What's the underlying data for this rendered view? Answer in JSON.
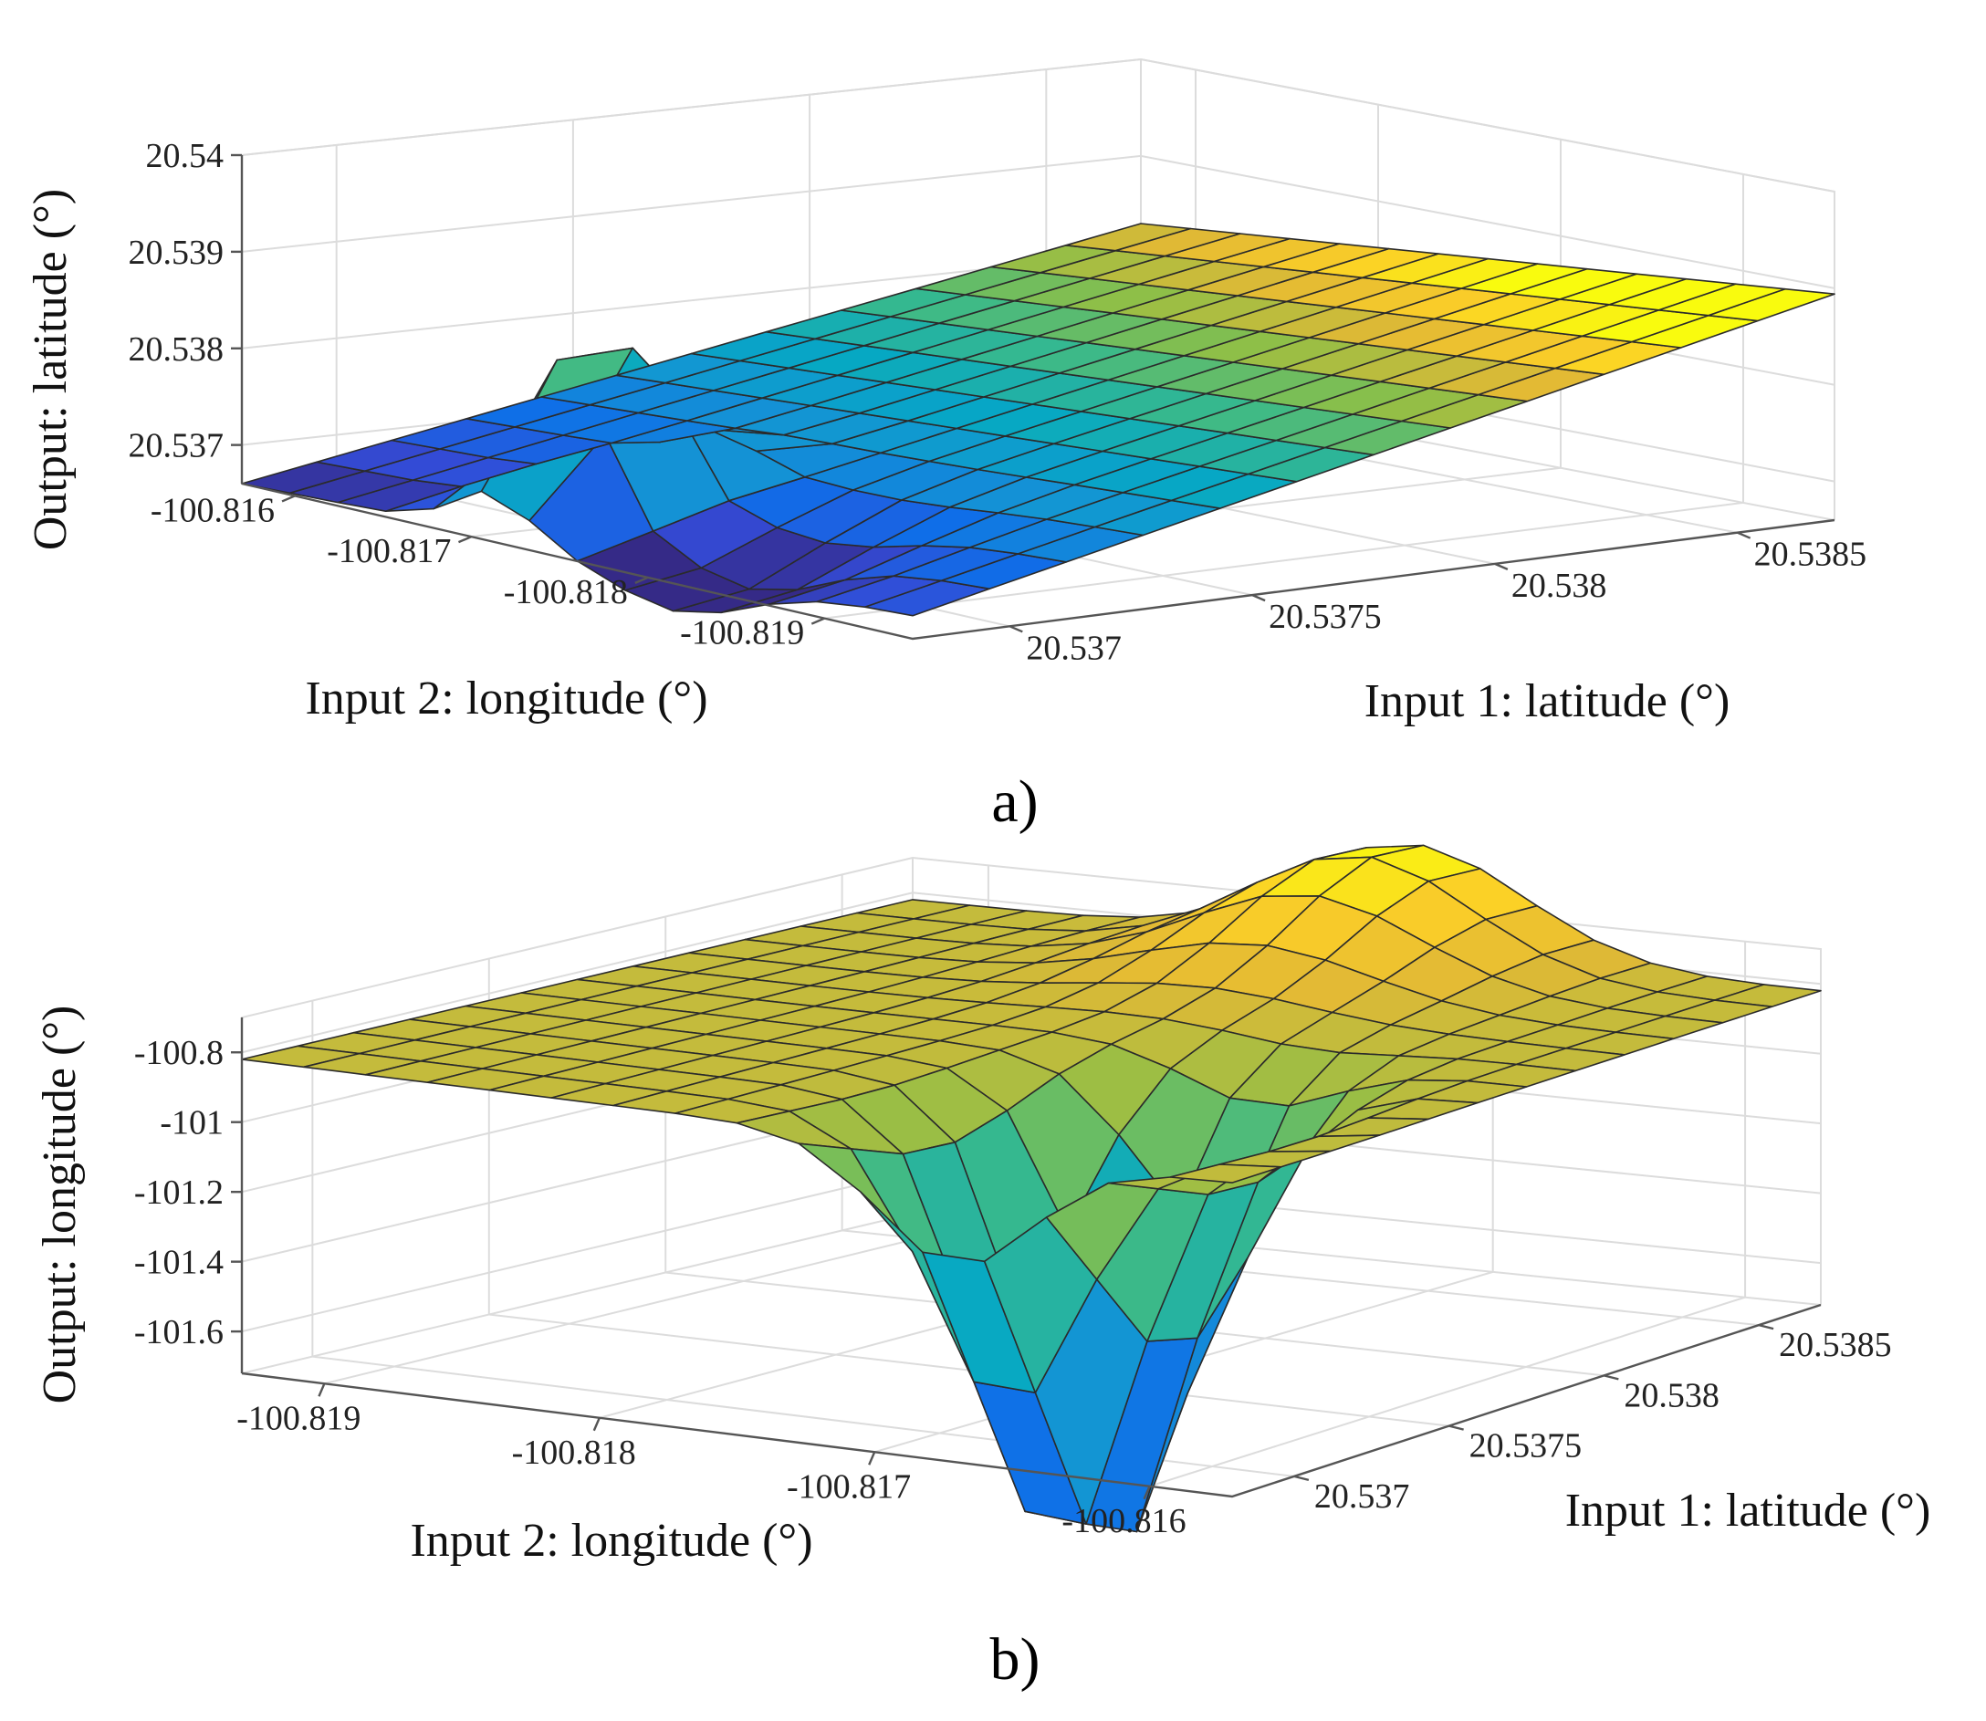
{
  "chart_data": [
    {
      "type": "surface3d",
      "panel_label": "a)",
      "zlabel": "Output: latitude (°)",
      "xlabel": "Input 2: longitude (°)",
      "ylabel": "Input 1: latitude (°)",
      "x_ticks": [
        "-100.816",
        "-100.817",
        "-100.818",
        "-100.819"
      ],
      "y_ticks": [
        "20.537",
        "20.5375",
        "20.538",
        "20.5385"
      ],
      "z_ticks": [
        "20.537",
        "20.538",
        "20.539",
        "20.54"
      ],
      "xlim": [
        -100.8195,
        -100.8157
      ],
      "ylim": [
        20.5368,
        20.5387
      ],
      "zlim": [
        20.5366,
        20.54
      ],
      "colormap": "parula",
      "description_values": {
        "surface_range": [
          20.5366,
          20.5387
        ],
        "peak": {
          "x": -100.8172,
          "y": 20.5371,
          "z": 20.5384
        }
      }
    },
    {
      "type": "surface3d",
      "panel_label": "b)",
      "zlabel": "Output: longitude (°)",
      "xlabel": "Input 2: longitude (°)",
      "ylabel": "Input 1: latitude (°)",
      "x_ticks": [
        "-100.819",
        "-100.818",
        "-100.817",
        "-100.816"
      ],
      "y_ticks": [
        "20.537",
        "20.5375",
        "20.538",
        "20.5385"
      ],
      "z_ticks": [
        "-100.8",
        "-101",
        "-101.2",
        "-101.4",
        "-101.6"
      ],
      "xlim": [
        -100.8193,
        -100.8157
      ],
      "ylim": [
        20.5368,
        20.5387
      ],
      "zlim": [
        -101.72,
        -100.7
      ],
      "colormap": "parula",
      "description_values": {
        "plateau": -100.82,
        "bump_max": -100.5,
        "dip_min": -102.2
      }
    }
  ]
}
